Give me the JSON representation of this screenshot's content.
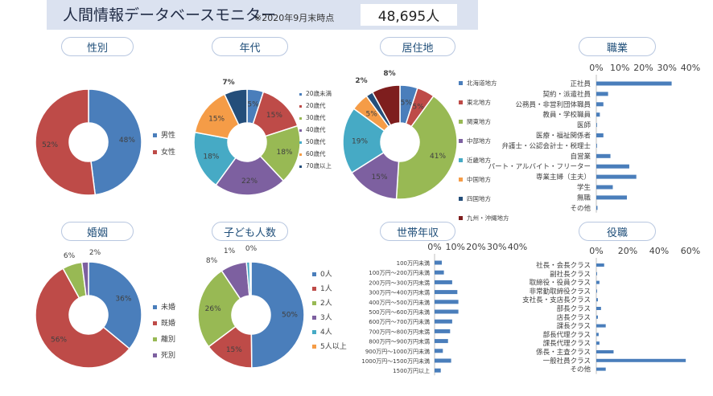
{
  "header": {
    "title": "人間情報データベースモニター",
    "as_of": "※2020年9月末時点",
    "total": "48,695人"
  },
  "chart_data": [
    {
      "id": "gender",
      "type": "pie",
      "title": "性別",
      "categories": [
        "男性",
        "女性"
      ],
      "values": [
        48,
        52
      ],
      "colors": [
        "#4a7ebb",
        "#be4b48"
      ],
      "value_labels": [
        "48%",
        "52%"
      ]
    },
    {
      "id": "age",
      "type": "pie",
      "title": "年代",
      "categories": [
        "20歳未満",
        "20歳代",
        "30歳代",
        "40歳代",
        "50歳代",
        "60歳代",
        "70歳以上"
      ],
      "values": [
        5,
        15,
        18,
        22,
        18,
        15,
        7
      ],
      "colors": [
        "#4a7ebb",
        "#be4b48",
        "#98b954",
        "#7d60a0",
        "#46aac5",
        "#f59c47",
        "#244e7a"
      ],
      "value_labels": [
        "5%",
        "15%",
        "18%",
        "22%",
        "18%",
        "15%",
        "7%"
      ]
    },
    {
      "id": "region",
      "type": "pie",
      "title": "居住地",
      "categories": [
        "北海道地方",
        "東北地方",
        "関東地方",
        "中部地方",
        "近畿地方",
        "中国地方",
        "四国地方",
        "九州・沖縄地方"
      ],
      "values": [
        5,
        5,
        41,
        15,
        19,
        5,
        2,
        8
      ],
      "colors": [
        "#4a7ebb",
        "#be4b48",
        "#98b954",
        "#7d60a0",
        "#46aac5",
        "#f59c47",
        "#244e7a",
        "#7e1e1e"
      ],
      "value_labels": [
        "5%",
        "5%",
        "41%",
        "15%",
        "19%",
        "5%",
        "2%",
        "8%"
      ]
    },
    {
      "id": "occupation",
      "type": "bar",
      "title": "職業",
      "categories": [
        "正社員",
        "契約・派遣社員",
        "公務員・非営利団体職員",
        "教員・学校職員",
        "医師",
        "医療・福祉関係者",
        "弁護士・公認会計士・税理士",
        "自営業",
        "パート・アルバイト・フリーター",
        "専業主婦（主夫）",
        "学生",
        "無職",
        "その他"
      ],
      "values": [
        32,
        5,
        3,
        1.5,
        0.3,
        3,
        0.3,
        6,
        14,
        17,
        7,
        13,
        0.5
      ],
      "xlim": [
        0,
        40
      ],
      "ticks": [
        "0%",
        "10%",
        "20%",
        "30%",
        "40%"
      ]
    },
    {
      "id": "marital",
      "type": "pie",
      "title": "婚姻",
      "categories": [
        "未婚",
        "既婚",
        "離別",
        "死別"
      ],
      "values": [
        36,
        56,
        6,
        2
      ],
      "colors": [
        "#4a7ebb",
        "#be4b48",
        "#98b954",
        "#7d60a0"
      ],
      "value_labels": [
        "36%",
        "56%",
        "6%",
        "2%"
      ]
    },
    {
      "id": "children",
      "type": "pie",
      "title": "子ども人数",
      "categories": [
        "0人",
        "1人",
        "2人",
        "3人",
        "4人",
        "5人以上"
      ],
      "values": [
        50,
        15,
        26,
        8,
        1,
        0.4
      ],
      "colors": [
        "#4a7ebb",
        "#be4b48",
        "#98b954",
        "#7d60a0",
        "#46aac5",
        "#f59c47"
      ],
      "value_labels": [
        "50%",
        "15%",
        "26%",
        "8%",
        "1%",
        "0%"
      ]
    },
    {
      "id": "income",
      "type": "bar",
      "title": "世帯年収",
      "categories": [
        "100万円未満",
        "100万円～200万円未満",
        "200万円～300万円未満",
        "300万円～400万円未満",
        "400万円～500万円未満",
        "500万円～600万円未満",
        "600万円～700万円未満",
        "700万円～800万円未満",
        "800万円～900万円未満",
        "900万円～1000万円未満",
        "1000万円～1500万円未満",
        "1500万円以上"
      ],
      "values": [
        3.5,
        4.5,
        8.5,
        11,
        11.5,
        11.5,
        8.5,
        7.5,
        6.5,
        4,
        8,
        3
      ],
      "xlim": [
        0,
        40
      ],
      "ticks": [
        "0%",
        "10%",
        "20%",
        "30%",
        "40%"
      ]
    },
    {
      "id": "position",
      "type": "bar",
      "title": "役職",
      "categories": [
        "社長・会長クラス",
        "副社長クラス",
        "取締役・役員クラス",
        "非常勤取締役クラス",
        "支社長・支店長クラス",
        "部長クラス",
        "店長クラス",
        "課長クラス",
        "部長代理クラス",
        "課長代理クラス",
        "係長・主査クラス",
        "一般社員クラス",
        "その他"
      ],
      "values": [
        5,
        0.5,
        2,
        0.5,
        1,
        3,
        1,
        6,
        1.5,
        2,
        11,
        57,
        6
      ],
      "xlim": [
        0,
        60
      ],
      "ticks": [
        "0%",
        "20%",
        "40%",
        "60%"
      ]
    }
  ]
}
